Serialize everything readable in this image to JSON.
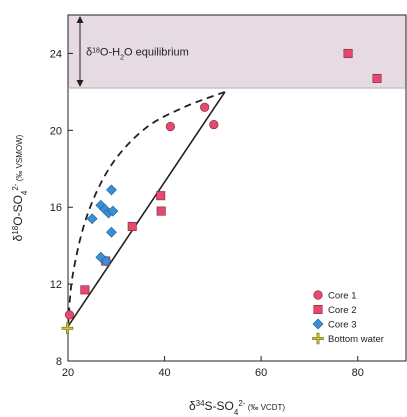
{
  "chart_data": {
    "type": "scatter",
    "xlim": [
      20,
      90
    ],
    "ylim": [
      8,
      26
    ],
    "x_ticks": [
      20,
      40,
      60,
      80
    ],
    "y_ticks": [
      8,
      12,
      16,
      20,
      24
    ],
    "xlabel": {
      "prefix": "δ",
      "sup1": "34",
      "mid": "S-SO",
      "sub": "4",
      "sup2": "2-",
      "unit": " (‰ VCDT)"
    },
    "ylabel": {
      "prefix": "δ",
      "sup1": "18",
      "mid": "O-SO",
      "sub": "4",
      "sup2": "2-",
      "unit": " (‰ VSMOW)"
    },
    "equilibrium_band": {
      "y_range": [
        22.2,
        26
      ],
      "label": {
        "prefix": "δ",
        "sup": "18",
        "mid": "O-H",
        "sub": "2",
        "suffix": "O equilibrium"
      },
      "color": "#e6dbe3"
    },
    "series": [
      {
        "name": "Core 1",
        "marker": "circle",
        "color": "#e34a6f",
        "points": [
          [
            20.3,
            10.4
          ],
          [
            41.2,
            20.2
          ],
          [
            48.3,
            21.2
          ],
          [
            50.2,
            20.3
          ]
        ]
      },
      {
        "name": "Core 2",
        "marker": "square",
        "color": "#e34a6f",
        "points": [
          [
            23.5,
            11.7
          ],
          [
            27.8,
            13.2
          ],
          [
            33.3,
            15.0
          ],
          [
            39.2,
            16.6
          ],
          [
            39.3,
            15.8
          ],
          [
            78.0,
            24.0
          ],
          [
            84.0,
            22.7
          ]
        ]
      },
      {
        "name": "Core 3",
        "marker": "diamond",
        "color": "#3a8fd4",
        "points": [
          [
            25.0,
            15.4
          ],
          [
            26.8,
            16.1
          ],
          [
            27.6,
            15.9
          ],
          [
            28.4,
            15.7
          ],
          [
            29.3,
            15.8
          ],
          [
            29.0,
            16.9
          ],
          [
            29.0,
            14.7
          ],
          [
            26.8,
            13.4
          ],
          [
            27.9,
            13.2
          ]
        ]
      },
      {
        "name": "Bottom water",
        "marker": "cross",
        "color": "#c9c23a",
        "points": [
          [
            19.9,
            9.7
          ]
        ]
      }
    ],
    "solid_line": [
      [
        20,
        9.8
      ],
      [
        52.5,
        22.0
      ]
    ],
    "dashed_curve": [
      [
        20,
        9.8
      ],
      [
        21,
        12.5
      ],
      [
        24,
        15.6
      ],
      [
        29,
        18.2
      ],
      [
        36,
        20.1
      ],
      [
        44,
        21.2
      ],
      [
        52.5,
        22.0
      ]
    ],
    "legend": {
      "position": "bottom-right"
    },
    "grid": false
  }
}
